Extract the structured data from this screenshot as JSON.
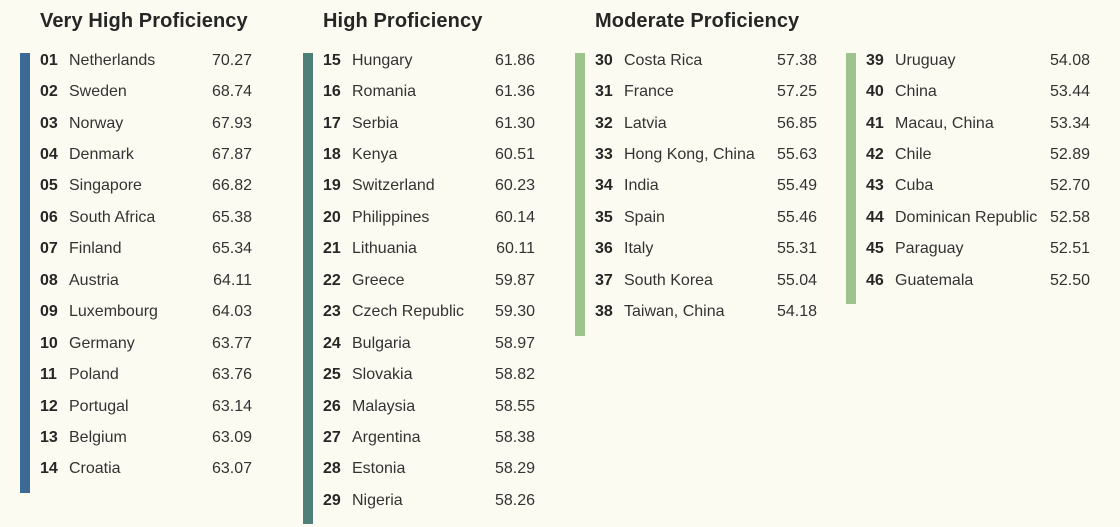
{
  "colors": {
    "background": "#fcfbf1",
    "very_high_bar": "#3d6a94",
    "high_bar": "#4e8078",
    "moderate_bar": "#9cc48c"
  },
  "groups": {
    "very_high": {
      "title": "Very High Proficiency",
      "items": [
        {
          "rank": "01",
          "country": "Netherlands",
          "score": "70.27"
        },
        {
          "rank": "02",
          "country": "Sweden",
          "score": "68.74"
        },
        {
          "rank": "03",
          "country": "Norway",
          "score": "67.93"
        },
        {
          "rank": "04",
          "country": "Denmark",
          "score": "67.87"
        },
        {
          "rank": "05",
          "country": "Singapore",
          "score": "66.82"
        },
        {
          "rank": "06",
          "country": "South Africa",
          "score": "65.38"
        },
        {
          "rank": "07",
          "country": "Finland",
          "score": "65.34"
        },
        {
          "rank": "08",
          "country": "Austria",
          "score": "64.11"
        },
        {
          "rank": "09",
          "country": "Luxembourg",
          "score": "64.03"
        },
        {
          "rank": "10",
          "country": "Germany",
          "score": "63.77"
        },
        {
          "rank": "11",
          "country": "Poland",
          "score": "63.76"
        },
        {
          "rank": "12",
          "country": "Portugal",
          "score": "63.14"
        },
        {
          "rank": "13",
          "country": "Belgium",
          "score": "63.09"
        },
        {
          "rank": "14",
          "country": "Croatia",
          "score": "63.07"
        }
      ]
    },
    "high": {
      "title": "High Proficiency",
      "items": [
        {
          "rank": "15",
          "country": "Hungary",
          "score": "61.86"
        },
        {
          "rank": "16",
          "country": "Romania",
          "score": "61.36"
        },
        {
          "rank": "17",
          "country": "Serbia",
          "score": "61.30"
        },
        {
          "rank": "18",
          "country": "Kenya",
          "score": "60.51"
        },
        {
          "rank": "19",
          "country": "Switzerland",
          "score": "60.23"
        },
        {
          "rank": "20",
          "country": "Philippines",
          "score": "60.14"
        },
        {
          "rank": "21",
          "country": "Lithuania",
          "score": "60.11"
        },
        {
          "rank": "22",
          "country": "Greece",
          "score": "59.87"
        },
        {
          "rank": "23",
          "country": "Czech Republic",
          "score": "59.30"
        },
        {
          "rank": "24",
          "country": "Bulgaria",
          "score": "58.97"
        },
        {
          "rank": "25",
          "country": "Slovakia",
          "score": "58.82"
        },
        {
          "rank": "26",
          "country": "Malaysia",
          "score": "58.55"
        },
        {
          "rank": "27",
          "country": "Argentina",
          "score": "58.38"
        },
        {
          "rank": "28",
          "country": "Estonia",
          "score": "58.29"
        },
        {
          "rank": "29",
          "country": "Nigeria",
          "score": "58.26"
        }
      ]
    },
    "moderate": {
      "title": "Moderate Proficiency",
      "items": [
        {
          "rank": "30",
          "country": "Costa Rica",
          "score": "57.38"
        },
        {
          "rank": "31",
          "country": "France",
          "score": "57.25"
        },
        {
          "rank": "32",
          "country": "Latvia",
          "score": "56.85"
        },
        {
          "rank": "33",
          "country": "Hong Kong, China",
          "score": "55.63"
        },
        {
          "rank": "34",
          "country": "India",
          "score": "55.49"
        },
        {
          "rank": "35",
          "country": "Spain",
          "score": "55.46"
        },
        {
          "rank": "36",
          "country": "Italy",
          "score": "55.31"
        },
        {
          "rank": "37",
          "country": "South Korea",
          "score": "55.04"
        },
        {
          "rank": "38",
          "country": "Taiwan, China",
          "score": "54.18"
        }
      ],
      "items_continued": [
        {
          "rank": "39",
          "country": "Uruguay",
          "score": "54.08"
        },
        {
          "rank": "40",
          "country": "China",
          "score": "53.44"
        },
        {
          "rank": "41",
          "country": "Macau, China",
          "score": "53.34"
        },
        {
          "rank": "42",
          "country": "Chile",
          "score": "52.89"
        },
        {
          "rank": "43",
          "country": "Cuba",
          "score": "52.70"
        },
        {
          "rank": "44",
          "country": "Dominican Republic",
          "score": "52.58"
        },
        {
          "rank": "45",
          "country": "Paraguay",
          "score": "52.51"
        },
        {
          "rank": "46",
          "country": "Guatemala",
          "score": "52.50"
        }
      ]
    }
  }
}
